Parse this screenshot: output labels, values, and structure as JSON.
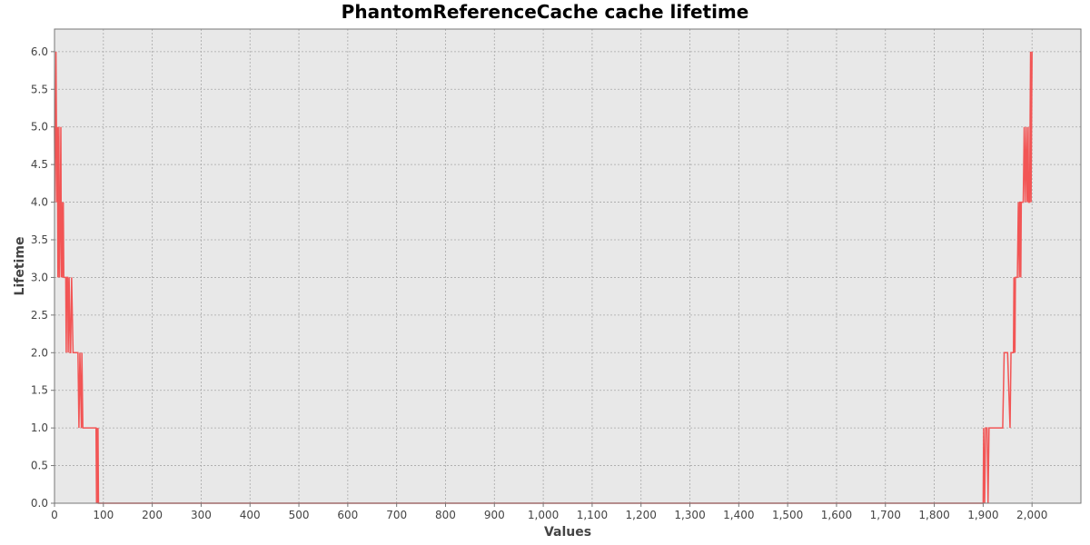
{
  "chart_data": {
    "type": "line",
    "title": "PhantomReferenceCache cache lifetime",
    "xlabel": "Values",
    "ylabel": "Lifetime",
    "xlim": [
      0,
      2100
    ],
    "ylim": [
      0,
      6.3
    ],
    "x_ticks": [
      0,
      100,
      200,
      300,
      400,
      500,
      600,
      700,
      800,
      900,
      1000,
      1100,
      1200,
      1300,
      1400,
      1500,
      1600,
      1700,
      1800,
      1900,
      2000
    ],
    "x_tick_labels": [
      "0",
      "100",
      "200",
      "300",
      "400",
      "500",
      "600",
      "700",
      "800",
      "900",
      "1,000",
      "1,100",
      "1,200",
      "1,300",
      "1,400",
      "1,500",
      "1,600",
      "1,700",
      "1,800",
      "1,900",
      "2,000"
    ],
    "y_ticks": [
      0,
      0.5,
      1.0,
      1.5,
      2.0,
      2.5,
      3.0,
      3.5,
      4.0,
      4.5,
      5.0,
      5.5,
      6.0
    ],
    "y_tick_labels": [
      "0.0",
      "0.5",
      "1.0",
      "1.5",
      "2.0",
      "2.5",
      "3.0",
      "3.5",
      "4.0",
      "4.5",
      "5.0",
      "5.5",
      "6.0"
    ],
    "grid": true,
    "legend": "none",
    "colors": {
      "series": "#f25555",
      "plot_background": "#e8e8e8",
      "grid": "#a8a8a8"
    },
    "series": [
      {
        "x": [
          0,
          1,
          3,
          5,
          6,
          7,
          9,
          10,
          12,
          13,
          14,
          15,
          16,
          18,
          19,
          20,
          21,
          23,
          24,
          25,
          27,
          28,
          30,
          32,
          33,
          35,
          38,
          40,
          42,
          44,
          46,
          48,
          50,
          52,
          55,
          56,
          58,
          60,
          70,
          80,
          85,
          86,
          87,
          88,
          89,
          90,
          92,
          93,
          94,
          95,
          100,
          500,
          1000,
          1500,
          1880,
          1895,
          1900,
          1901,
          1903,
          1905,
          1908,
          1910,
          1912,
          1915,
          1920,
          1930,
          1940,
          1943,
          1945,
          1950,
          1955,
          1957,
          1960,
          1962,
          1963,
          1965,
          1966,
          1967,
          1970,
          1972,
          1974,
          1975,
          1976,
          1977,
          1978,
          1979,
          1980,
          1982,
          1984,
          1986,
          1988,
          1990,
          1992,
          1993,
          1995,
          1997,
          1998,
          2000
        ],
        "values": [
          5,
          4,
          6,
          4,
          5,
          3,
          5,
          3,
          4,
          5,
          3,
          4,
          3,
          4,
          3,
          3,
          3,
          3,
          2,
          3,
          3,
          2,
          3,
          2,
          2,
          3,
          2,
          2,
          2,
          2,
          2,
          2,
          1,
          2,
          1,
          2,
          1,
          1,
          1,
          1,
          1,
          0,
          1,
          0,
          1,
          0,
          0,
          0,
          0,
          0,
          0,
          0,
          0,
          0,
          0,
          0,
          0,
          1,
          0,
          1,
          1,
          0,
          1,
          1,
          1,
          1,
          1,
          2,
          2,
          2,
          1,
          2,
          2,
          2,
          3,
          2,
          3,
          3,
          3,
          4,
          3,
          4,
          4,
          3,
          4,
          4,
          4,
          4,
          5,
          4,
          5,
          4,
          5,
          4,
          4,
          6,
          4,
          6
        ]
      }
    ]
  }
}
